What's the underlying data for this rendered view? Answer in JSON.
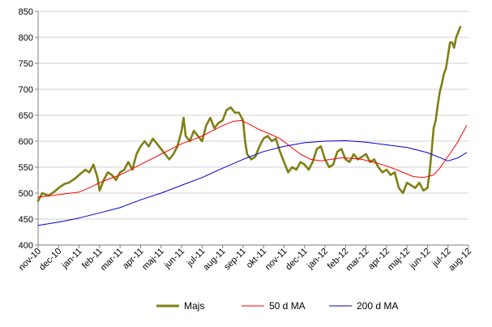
{
  "chart_data": {
    "type": "line",
    "title": "",
    "xlabel": "",
    "ylabel": "",
    "ylim": [
      400,
      850
    ],
    "yticks": [
      400,
      450,
      500,
      550,
      600,
      650,
      700,
      750,
      800,
      850
    ],
    "x_tick_labels": [
      "nov-10",
      "dec-10",
      "jan-11",
      "feb-11",
      "mar-11",
      "apr-11",
      "maj-11",
      "jun-11",
      "jul-11",
      "aug-11",
      "sep-11",
      "okt-11",
      "nov-11",
      "dec-11",
      "jan-12",
      "feb-12",
      "mar-12",
      "apr-12",
      "maj-12",
      "jun-12",
      "jul-12",
      "aug-12"
    ],
    "grid": "horizontal",
    "legend_position": "bottom",
    "series": [
      {
        "name": "Majs",
        "color": "#7f7f14",
        "style": "thick",
        "points": [
          [
            0,
            485
          ],
          [
            0.2,
            500
          ],
          [
            0.5,
            495
          ],
          [
            0.8,
            503
          ],
          [
            1.0,
            510
          ],
          [
            1.3,
            518
          ],
          [
            1.5,
            520
          ],
          [
            1.8,
            528
          ],
          [
            2.0,
            535
          ],
          [
            2.3,
            545
          ],
          [
            2.5,
            540
          ],
          [
            2.7,
            555
          ],
          [
            2.9,
            530
          ],
          [
            3.0,
            505
          ],
          [
            3.2,
            525
          ],
          [
            3.4,
            540
          ],
          [
            3.6,
            535
          ],
          [
            3.8,
            525
          ],
          [
            4.0,
            540
          ],
          [
            4.2,
            545
          ],
          [
            4.4,
            560
          ],
          [
            4.6,
            545
          ],
          [
            4.8,
            575
          ],
          [
            5.0,
            590
          ],
          [
            5.2,
            600
          ],
          [
            5.4,
            590
          ],
          [
            5.6,
            605
          ],
          [
            5.8,
            595
          ],
          [
            6.0,
            585
          ],
          [
            6.2,
            575
          ],
          [
            6.4,
            565
          ],
          [
            6.6,
            575
          ],
          [
            6.8,
            590
          ],
          [
            7.0,
            620
          ],
          [
            7.1,
            645
          ],
          [
            7.2,
            610
          ],
          [
            7.4,
            600
          ],
          [
            7.6,
            620
          ],
          [
            7.8,
            610
          ],
          [
            8.0,
            600
          ],
          [
            8.2,
            630
          ],
          [
            8.4,
            645
          ],
          [
            8.6,
            625
          ],
          [
            8.8,
            635
          ],
          [
            9.0,
            640
          ],
          [
            9.2,
            660
          ],
          [
            9.4,
            665
          ],
          [
            9.6,
            655
          ],
          [
            9.8,
            655
          ],
          [
            10.0,
            640
          ],
          [
            10.1,
            600
          ],
          [
            10.2,
            575
          ],
          [
            10.4,
            565
          ],
          [
            10.6,
            570
          ],
          [
            10.8,
            590
          ],
          [
            11.0,
            605
          ],
          [
            11.2,
            610
          ],
          [
            11.4,
            600
          ],
          [
            11.6,
            605
          ],
          [
            11.8,
            580
          ],
          [
            12.0,
            560
          ],
          [
            12.2,
            540
          ],
          [
            12.4,
            550
          ],
          [
            12.6,
            545
          ],
          [
            12.8,
            560
          ],
          [
            13.0,
            555
          ],
          [
            13.2,
            545
          ],
          [
            13.4,
            560
          ],
          [
            13.6,
            585
          ],
          [
            13.8,
            590
          ],
          [
            14.0,
            565
          ],
          [
            14.2,
            550
          ],
          [
            14.4,
            555
          ],
          [
            14.6,
            580
          ],
          [
            14.8,
            585
          ],
          [
            15.0,
            565
          ],
          [
            15.2,
            560
          ],
          [
            15.4,
            575
          ],
          [
            15.6,
            565
          ],
          [
            15.8,
            570
          ],
          [
            16.0,
            575
          ],
          [
            16.2,
            560
          ],
          [
            16.4,
            565
          ],
          [
            16.6,
            550
          ],
          [
            16.8,
            540
          ],
          [
            17.0,
            545
          ],
          [
            17.2,
            535
          ],
          [
            17.4,
            540
          ],
          [
            17.6,
            510
          ],
          [
            17.8,
            500
          ],
          [
            18.0,
            520
          ],
          [
            18.2,
            515
          ],
          [
            18.4,
            510
          ],
          [
            18.6,
            520
          ],
          [
            18.8,
            505
          ],
          [
            19.0,
            510
          ],
          [
            19.1,
            540
          ],
          [
            19.2,
            580
          ],
          [
            19.3,
            625
          ],
          [
            19.4,
            640
          ],
          [
            19.5,
            670
          ],
          [
            19.6,
            695
          ],
          [
            19.7,
            710
          ],
          [
            19.8,
            730
          ],
          [
            19.9,
            740
          ],
          [
            20.0,
            765
          ],
          [
            20.1,
            790
          ],
          [
            20.2,
            790
          ],
          [
            20.3,
            780
          ],
          [
            20.4,
            800
          ],
          [
            20.5,
            810
          ],
          [
            20.6,
            820
          ]
        ]
      },
      {
        "name": "50 d MA",
        "color": "#ff0000",
        "style": "thin",
        "points": [
          [
            0,
            492
          ],
          [
            1.0,
            497
          ],
          [
            2.0,
            502
          ],
          [
            2.6,
            512
          ],
          [
            3.0,
            520
          ],
          [
            3.5,
            528
          ],
          [
            4.0,
            535
          ],
          [
            4.5,
            545
          ],
          [
            5.0,
            555
          ],
          [
            5.5,
            565
          ],
          [
            6.0,
            575
          ],
          [
            6.5,
            585
          ],
          [
            7.0,
            595
          ],
          [
            7.5,
            602
          ],
          [
            8.0,
            610
          ],
          [
            8.5,
            620
          ],
          [
            9.0,
            630
          ],
          [
            9.5,
            638
          ],
          [
            9.9,
            640
          ],
          [
            10.3,
            633
          ],
          [
            10.8,
            622
          ],
          [
            11.3,
            614
          ],
          [
            11.8,
            605
          ],
          [
            12.3,
            590
          ],
          [
            12.8,
            575
          ],
          [
            13.3,
            565
          ],
          [
            13.8,
            562
          ],
          [
            14.3,
            565
          ],
          [
            14.8,
            568
          ],
          [
            15.3,
            567
          ],
          [
            15.8,
            565
          ],
          [
            16.3,
            560
          ],
          [
            16.8,
            555
          ],
          [
            17.3,
            548
          ],
          [
            17.8,
            540
          ],
          [
            18.3,
            532
          ],
          [
            18.8,
            530
          ],
          [
            19.3,
            535
          ],
          [
            19.6,
            548
          ],
          [
            19.9,
            565
          ],
          [
            20.2,
            582
          ],
          [
            20.5,
            600
          ],
          [
            20.7,
            615
          ],
          [
            20.9,
            630
          ]
        ]
      },
      {
        "name": "200 d MA",
        "color": "#0000cc",
        "style": "thin",
        "points": [
          [
            0,
            438
          ],
          [
            1.0,
            444
          ],
          [
            2.0,
            452
          ],
          [
            3.0,
            462
          ],
          [
            4.0,
            472
          ],
          [
            5.0,
            487
          ],
          [
            6.0,
            500
          ],
          [
            7.0,
            515
          ],
          [
            8.0,
            530
          ],
          [
            9.0,
            548
          ],
          [
            10.0,
            565
          ],
          [
            11.0,
            580
          ],
          [
            12.0,
            590
          ],
          [
            13.0,
            597
          ],
          [
            14.0,
            600
          ],
          [
            15.0,
            601
          ],
          [
            16.0,
            598
          ],
          [
            17.0,
            593
          ],
          [
            18.0,
            588
          ],
          [
            19.0,
            578
          ],
          [
            19.5,
            570
          ],
          [
            20.0,
            562
          ],
          [
            20.5,
            568
          ],
          [
            20.9,
            578
          ]
        ]
      }
    ]
  }
}
